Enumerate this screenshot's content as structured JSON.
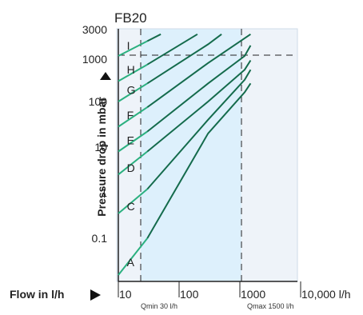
{
  "chart_data": {
    "type": "line",
    "title": "FB20",
    "xlabel": "Flow in l/h",
    "ylabel": "Pressure drop in mbar",
    "x_scale": "log",
    "y_scale": "log",
    "xlim": [
      10,
      10000
    ],
    "ylim": [
      0.01,
      5000
    ],
    "x_ticks": [
      {
        "value": 10,
        "label": "10"
      },
      {
        "value": 100,
        "label": "100"
      },
      {
        "value": 1000,
        "label": "1000"
      },
      {
        "value": 10000,
        "label": "10,000 l/h"
      }
    ],
    "y_ticks": [
      {
        "value": 0.1,
        "label": "0.1"
      },
      {
        "value": 1,
        "label": "1"
      },
      {
        "value": 10,
        "label": "10"
      },
      {
        "value": 100,
        "label": "100"
      },
      {
        "value": 1000,
        "label": "1000"
      },
      {
        "value": 3000,
        "label": "3000"
      }
    ],
    "operating_range": {
      "qmin": 30,
      "qmin_label": "Qmin 30 l/h",
      "qmax": 1500,
      "qmax_label": "Qmax 1500 l/h",
      "pmax": 3000
    },
    "series": [
      {
        "name": "A",
        "label_at": [
          14,
          0.03
        ],
        "points": [
          [
            10,
            0.013
          ],
          [
            30,
            0.1
          ],
          [
            300,
            20
          ],
          [
            1200,
            160
          ],
          [
            1500,
            250
          ]
        ]
      },
      {
        "name": "C",
        "label_at": [
          14,
          0.5
        ],
        "points": [
          [
            10,
            0.35
          ],
          [
            30,
            1.2
          ],
          [
            300,
            40
          ],
          [
            1200,
            300
          ],
          [
            1500,
            500
          ]
        ]
      },
      {
        "name": "D",
        "label_at": [
          14,
          3.5
        ],
        "points": [
          [
            10,
            2.5
          ],
          [
            30,
            8
          ],
          [
            300,
            100
          ],
          [
            1200,
            500
          ],
          [
            1500,
            800
          ]
        ]
      },
      {
        "name": "E",
        "label_at": [
          14,
          14
        ],
        "points": [
          [
            10,
            8
          ],
          [
            30,
            22
          ],
          [
            300,
            250
          ],
          [
            1200,
            1000
          ],
          [
            1500,
            1700
          ]
        ]
      },
      {
        "name": "F",
        "label_at": [
          14,
          50
        ],
        "points": [
          [
            10,
            28
          ],
          [
            30,
            75
          ],
          [
            300,
            700
          ],
          [
            1500,
            3000
          ]
        ]
      },
      {
        "name": "G",
        "label_at": [
          14,
          180
        ],
        "points": [
          [
            10,
            100
          ],
          [
            30,
            250
          ],
          [
            300,
            1800
          ],
          [
            500,
            3000
          ]
        ]
      },
      {
        "name": "H",
        "label_at": [
          14,
          500
        ],
        "points": [
          [
            10,
            280
          ],
          [
            30,
            650
          ],
          [
            200,
            3000
          ]
        ]
      },
      {
        "name": "I",
        "label_at": [
          14,
          1700
        ],
        "points": [
          [
            10,
            1000
          ],
          [
            50,
            3000
          ]
        ]
      }
    ]
  }
}
